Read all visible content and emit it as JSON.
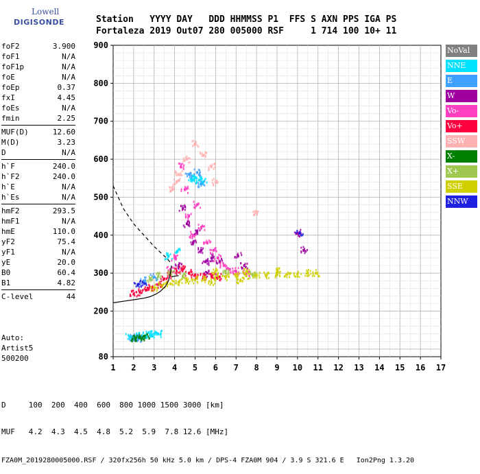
{
  "logo": {
    "line1": "Lowell",
    "line2": "DIGISONDE"
  },
  "header": {
    "labels": [
      "Station",
      "YYYY",
      "DAY",
      "DDD",
      "HHMMSS",
      "P1",
      "FFS",
      "S",
      "AXN",
      "PPS",
      "IGA",
      "PS"
    ],
    "values": [
      "Fortaleza",
      "2019",
      "Out07",
      "280",
      "005000",
      "RSF",
      "",
      "1",
      "714",
      "100",
      "10+",
      "11"
    ]
  },
  "params": [
    {
      "group": [
        {
          "name": "foF2",
          "value": "3.900"
        },
        {
          "name": "foF1",
          "value": "N/A"
        },
        {
          "name": "foF1p",
          "value": "N/A"
        },
        {
          "name": "foE",
          "value": "N/A"
        },
        {
          "name": "foEp",
          "value": "0.37"
        },
        {
          "name": "fxI",
          "value": "4.45"
        },
        {
          "name": "foEs",
          "value": "N/A"
        },
        {
          "name": "fmin",
          "value": "2.25"
        }
      ]
    },
    {
      "group": [
        {
          "name": "MUF(D)",
          "value": "12.60"
        },
        {
          "name": "M(D)",
          "value": "3.23"
        },
        {
          "name": "D",
          "value": "N/A"
        }
      ]
    },
    {
      "group": [
        {
          "name": "h`F",
          "value": "240.0"
        },
        {
          "name": "h`F2",
          "value": "240.0"
        },
        {
          "name": "h`E",
          "value": "N/A"
        },
        {
          "name": "h`Es",
          "value": "N/A"
        }
      ]
    },
    {
      "group": [
        {
          "name": "hmF2",
          "value": "293.5"
        },
        {
          "name": "hmF1",
          "value": "N/A"
        },
        {
          "name": "hmE",
          "value": "110.0"
        },
        {
          "name": "yF2",
          "value": "75.4"
        },
        {
          "name": "yF1",
          "value": "N/A"
        },
        {
          "name": "yE",
          "value": "20.0"
        },
        {
          "name": "B0",
          "value": "60.4"
        },
        {
          "name": "B1",
          "value": "4.82"
        }
      ]
    },
    {
      "group": [
        {
          "name": "C-level",
          "value": "44"
        }
      ]
    }
  ],
  "auto": {
    "line1": "Auto:",
    "line2": "Artist5",
    "line3": "500200"
  },
  "legend": [
    {
      "label": "NoVal",
      "color": "#808080"
    },
    {
      "label": "NNE",
      "color": "#00e0ff"
    },
    {
      "label": "E",
      "color": "#40a0ff"
    },
    {
      "label": "W",
      "color": "#a000a0"
    },
    {
      "label": "Vo-",
      "color": "#ff40c0"
    },
    {
      "label": "Vo+",
      "color": "#ff0040"
    },
    {
      "label": "SSW",
      "color": "#ffb0b0"
    },
    {
      "label": "X-",
      "color": "#008000"
    },
    {
      "label": "X+",
      "color": "#a0c850"
    },
    {
      "label": "SSE",
      "color": "#d0d000"
    },
    {
      "label": "NNW",
      "color": "#2020e0"
    }
  ],
  "footer": {
    "line1": "D     100  200  400  600  800 1000 1500 3000 [km]",
    "line2": "MUF   4.2  4.3  4.5  4.8  5.2  5.9  7.8 12.6 [MHz]",
    "line3": "FZA0M_2019280005000.RSF / 320fx256h 50 kHz 5.0 km / DPS-4 FZA0M 904 / 3.9 S 321.6 E   Ion2Png 1.3.20"
  },
  "chart_data": {
    "type": "scatter",
    "xlim": [
      1,
      17
    ],
    "ylim": [
      80,
      900
    ],
    "x_ticks": [
      "1",
      "2",
      "3",
      "4",
      "5",
      "6",
      "7",
      "8",
      "9",
      "10",
      "11",
      "12",
      "13",
      "14",
      "15",
      "16",
      "17"
    ],
    "y_ticks": [
      "80",
      "200",
      "300",
      "400",
      "500",
      "600",
      "700",
      "800",
      "900"
    ],
    "grid": true,
    "series": [
      {
        "name": "NoVal",
        "color": "#808080",
        "points": []
      },
      {
        "name": "NNE",
        "color": "#00e0ff",
        "points": [
          [
            1.8,
            132
          ],
          [
            2.0,
            134
          ],
          [
            2.2,
            135
          ],
          [
            2.4,
            133
          ],
          [
            2.6,
            136
          ],
          [
            2.8,
            138
          ],
          [
            3.0,
            139
          ],
          [
            3.2,
            140
          ],
          [
            4.8,
            548
          ],
          [
            5.0,
            552
          ],
          [
            5.2,
            545
          ],
          [
            5.4,
            540
          ],
          [
            3.7,
            345
          ],
          [
            4.1,
            355
          ]
        ]
      },
      {
        "name": "E",
        "color": "#40a0ff",
        "points": [
          [
            1.9,
            130
          ],
          [
            2.1,
            131
          ],
          [
            2.3,
            128
          ],
          [
            4.7,
            560
          ],
          [
            5.1,
            565
          ],
          [
            5.3,
            535
          ],
          [
            2.5,
            280
          ],
          [
            3.0,
            290
          ]
        ]
      },
      {
        "name": "W",
        "color": "#a000a0",
        "points": [
          [
            4.4,
            470
          ],
          [
            4.6,
            430
          ],
          [
            4.9,
            380
          ],
          [
            5.1,
            410
          ],
          [
            5.3,
            360
          ],
          [
            5.5,
            330
          ],
          [
            5.8,
            340
          ],
          [
            6.2,
            330
          ],
          [
            7.1,
            345
          ],
          [
            7.4,
            320
          ],
          [
            10.0,
            405
          ],
          [
            10.3,
            360
          ],
          [
            4.2,
            320
          ],
          [
            5.6,
            300
          ]
        ]
      },
      {
        "name": "Vo-",
        "color": "#ff40c0",
        "points": [
          [
            4.3,
            580
          ],
          [
            4.5,
            520
          ],
          [
            4.7,
            450
          ],
          [
            4.9,
            400
          ],
          [
            5.1,
            480
          ],
          [
            5.3,
            420
          ],
          [
            5.6,
            380
          ],
          [
            5.9,
            360
          ],
          [
            6.1,
            340
          ],
          [
            6.4,
            320
          ],
          [
            6.7,
            310
          ],
          [
            7.0,
            305
          ],
          [
            7.5,
            300
          ],
          [
            4.0,
            340
          ],
          [
            3.8,
            310
          ]
        ]
      },
      {
        "name": "Vo+",
        "color": "#ff0040",
        "points": [
          [
            2.0,
            245
          ],
          [
            2.3,
            250
          ],
          [
            2.6,
            255
          ],
          [
            2.9,
            262
          ],
          [
            3.2,
            270
          ],
          [
            3.5,
            285
          ],
          [
            3.8,
            295
          ],
          [
            4.1,
            305
          ],
          [
            4.4,
            310
          ],
          [
            4.7,
            300
          ],
          [
            5.0,
            295
          ],
          [
            5.4,
            290
          ],
          [
            5.8,
            292
          ],
          [
            6.2,
            290
          ]
        ]
      },
      {
        "name": "SSW",
        "color": "#ffb0b0",
        "points": [
          [
            4.2,
            560
          ],
          [
            4.6,
            600
          ],
          [
            5.0,
            640
          ],
          [
            5.4,
            610
          ],
          [
            5.8,
            580
          ],
          [
            6.0,
            540
          ],
          [
            8.0,
            460
          ],
          [
            3.9,
            520
          ],
          [
            4.1,
            540
          ]
        ]
      },
      {
        "name": "X-",
        "color": "#008000",
        "points": [
          [
            2.0,
            128
          ],
          [
            2.2,
            130
          ],
          [
            2.4,
            129
          ],
          [
            2.6,
            131
          ]
        ]
      },
      {
        "name": "X+",
        "color": "#a0c850",
        "points": [
          [
            2.8,
            285
          ],
          [
            3.2,
            292
          ],
          [
            3.8,
            300
          ],
          [
            4.4,
            292
          ],
          [
            6.5,
            300
          ],
          [
            7.8,
            295
          ]
        ]
      },
      {
        "name": "SSE",
        "color": "#d0d000",
        "points": [
          [
            3.0,
            262
          ],
          [
            3.4,
            268
          ],
          [
            3.8,
            272
          ],
          [
            4.2,
            276
          ],
          [
            4.6,
            280
          ],
          [
            5.0,
            282
          ],
          [
            5.5,
            285
          ],
          [
            6.0,
            288
          ],
          [
            6.5,
            290
          ],
          [
            7.0,
            292
          ],
          [
            7.5,
            293
          ],
          [
            8.0,
            294
          ],
          [
            8.5,
            295
          ],
          [
            9.0,
            296
          ],
          [
            9.5,
            297
          ],
          [
            10.0,
            298
          ],
          [
            10.5,
            300
          ],
          [
            10.9,
            300
          ],
          [
            6.0,
            305
          ],
          [
            7.5,
            305
          ],
          [
            9.0,
            305
          ],
          [
            5.8,
            275
          ],
          [
            7.2,
            280
          ]
        ]
      },
      {
        "name": "NNW",
        "color": "#2020e0",
        "points": [
          [
            2.2,
            270
          ],
          [
            2.5,
            275
          ],
          [
            10.1,
            405
          ]
        ]
      }
    ],
    "curves": [
      {
        "style": "dashed",
        "points": [
          [
            1.0,
            530
          ],
          [
            1.5,
            470
          ],
          [
            2.0,
            430
          ],
          [
            2.5,
            400
          ],
          [
            3.0,
            370
          ],
          [
            3.3,
            355
          ],
          [
            3.6,
            340
          ],
          [
            3.85,
            325
          ]
        ]
      },
      {
        "style": "solid",
        "points": [
          [
            1.0,
            222
          ],
          [
            1.5,
            226
          ],
          [
            2.0,
            230
          ],
          [
            2.5,
            234
          ],
          [
            2.8,
            238
          ],
          [
            3.1,
            245
          ],
          [
            3.3,
            252
          ],
          [
            3.55,
            265
          ],
          [
            3.7,
            280
          ],
          [
            3.8,
            300
          ],
          [
            3.85,
            320
          ]
        ]
      },
      {
        "style": "solid",
        "points": [
          [
            3.85,
            290
          ],
          [
            4.0,
            292
          ],
          [
            4.2,
            293.5
          ]
        ]
      }
    ]
  }
}
